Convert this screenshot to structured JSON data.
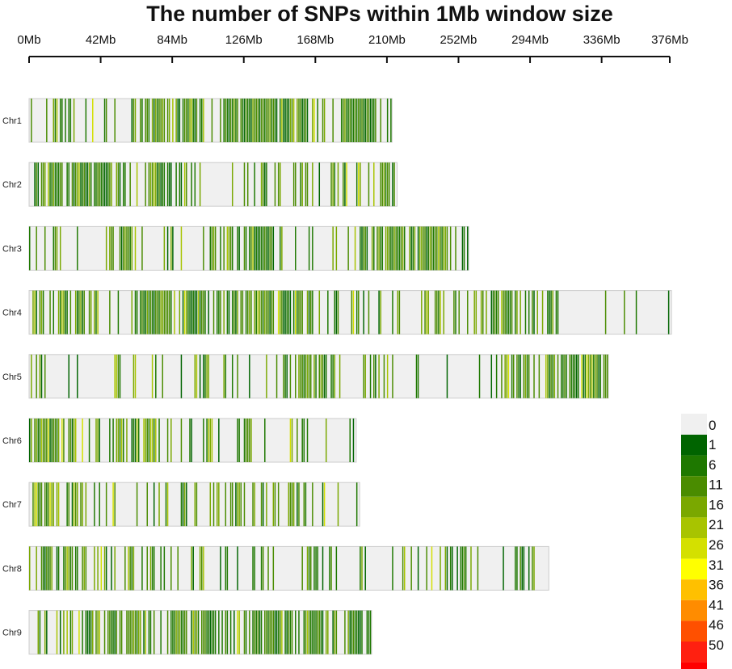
{
  "chart_data": {
    "type": "heatmap",
    "title": "The number of SNPs within 1Mb window size",
    "x_unit": "Mb",
    "xlim": [
      0,
      376
    ],
    "x_ticks": [
      "0Mb",
      "42Mb",
      "84Mb",
      "126Mb",
      "168Mb",
      "210Mb",
      "252Mb",
      "294Mb",
      "336Mb",
      "376Mb"
    ],
    "x_tick_values": [
      0,
      42,
      84,
      126,
      168,
      210,
      252,
      294,
      336,
      376
    ],
    "chromosomes": [
      {
        "name": "Chr1",
        "length_mb": 213
      },
      {
        "name": "Chr2",
        "length_mb": 216
      },
      {
        "name": "Chr3",
        "length_mb": 258
      },
      {
        "name": "Chr4",
        "length_mb": 377
      },
      {
        "name": "Chr5",
        "length_mb": 340
      },
      {
        "name": "Chr6",
        "length_mb": 192
      },
      {
        "name": "Chr7",
        "length_mb": 194
      },
      {
        "name": "Chr8",
        "length_mb": 305
      },
      {
        "name": "Chr9",
        "length_mb": 201
      }
    ],
    "legend": {
      "placement": "bottom-right",
      "labels": [
        "0",
        "1",
        "6",
        "11",
        "16",
        "21",
        "26",
        "31",
        "36",
        "41",
        "46",
        "50"
      ],
      "colors": [
        "#f0f0f0",
        "#006400",
        "#1e7800",
        "#4a8c00",
        "#7aa800",
        "#a8c400",
        "#d4e000",
        "#ffff00",
        "#ffc000",
        "#ff8c00",
        "#ff5000",
        "#ff2010",
        "#ff0000"
      ]
    }
  }
}
